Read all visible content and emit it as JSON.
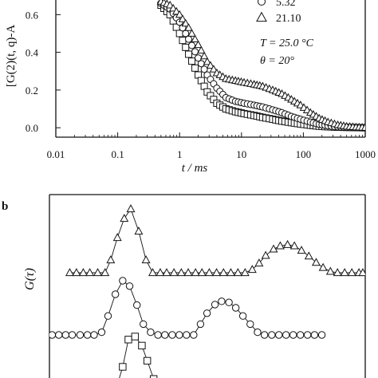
{
  "chart_data": [
    {
      "panel": "a",
      "type": "scatter",
      "xscale": "log",
      "xlim": [
        0.01,
        1000
      ],
      "ylim": [
        -0.05,
        0.72
      ],
      "xlabel": "t / ms",
      "ylabel": "[G(2)(t, q)-A",
      "xticks": [
        0.01,
        0.1,
        1,
        10,
        100,
        1000
      ],
      "xtick_labels": [
        "0.01",
        "0.1",
        "1",
        "10",
        "100",
        "1000"
      ],
      "yticks": [
        0.0,
        0.2,
        0.4,
        0.6
      ],
      "ytick_labels": [
        "0.0",
        "0.2",
        "0.4",
        "0.6"
      ],
      "annotations": [
        "T = 25.0 °C",
        "θ = 20°"
      ],
      "legend_position": "top-right",
      "series": [
        {
          "name": "",
          "marker": "square",
          "x": [
            0.5,
            0.7,
            1.0,
            1.4,
            2.0,
            2.8,
            4.0,
            5.6,
            8.0,
            11,
            16,
            22,
            32,
            45,
            64,
            90,
            130,
            180,
            250,
            360,
            500,
            710,
            1000
          ],
          "y": [
            0.65,
            0.6,
            0.5,
            0.39,
            0.28,
            0.19,
            0.13,
            0.1,
            0.085,
            0.075,
            0.065,
            0.055,
            0.045,
            0.035,
            0.027,
            0.02,
            0.013,
            0.008,
            0.005,
            0.003,
            0.002,
            0.001,
            0.0
          ]
        },
        {
          "name": "5.32",
          "marker": "circle",
          "x": [
            0.5,
            0.7,
            1.0,
            1.4,
            2.0,
            2.8,
            4.0,
            5.6,
            8.0,
            11,
            16,
            22,
            32,
            45,
            64,
            90,
            130,
            180,
            250,
            360,
            500,
            710,
            1000
          ],
          "y": [
            0.66,
            0.63,
            0.56,
            0.47,
            0.37,
            0.28,
            0.21,
            0.16,
            0.14,
            0.13,
            0.12,
            0.11,
            0.095,
            0.08,
            0.06,
            0.045,
            0.03,
            0.018,
            0.01,
            0.005,
            0.002,
            0.001,
            0.0
          ]
        },
        {
          "name": "21.10",
          "marker": "triangle",
          "x": [
            0.5,
            0.7,
            1.0,
            1.4,
            2.0,
            2.8,
            4.0,
            5.6,
            8.0,
            11,
            16,
            22,
            32,
            45,
            64,
            90,
            130,
            180,
            250,
            360,
            500,
            710,
            1000
          ],
          "y": [
            0.67,
            0.65,
            0.6,
            0.53,
            0.44,
            0.35,
            0.29,
            0.26,
            0.25,
            0.24,
            0.23,
            0.22,
            0.2,
            0.18,
            0.15,
            0.12,
            0.08,
            0.05,
            0.03,
            0.015,
            0.007,
            0.003,
            0.001
          ]
        }
      ]
    },
    {
      "panel": "b",
      "type": "line",
      "xscale": "log",
      "ylabel": "G(τ)",
      "series": [
        {
          "name": "",
          "marker": "triangle",
          "x": [
            0.01,
            0.013,
            0.017,
            0.022,
            0.03,
            0.04,
            0.05,
            0.065,
            0.085,
            0.11,
            0.15,
            0.2,
            0.26,
            0.35,
            0.45,
            0.6,
            0.8,
            1.05,
            1.4,
            1.8,
            2.4,
            3.2,
            4.2,
            5.6,
            7.4,
            9.8,
            13,
            17,
            22,
            30,
            39,
            52,
            68,
            90,
            120,
            160,
            210,
            280,
            370,
            490,
            650,
            860,
            1000
          ],
          "y": [
            0.0,
            0.0,
            0.0,
            0.0,
            0.0,
            0.0,
            0.2,
            0.55,
            0.85,
            1.0,
            0.65,
            0.2,
            0.0,
            0.0,
            0.0,
            0.0,
            0.0,
            0.0,
            0.0,
            0.0,
            0.0,
            0.0,
            0.0,
            0.0,
            0.0,
            0.0,
            0.05,
            0.15,
            0.27,
            0.37,
            0.42,
            0.44,
            0.42,
            0.35,
            0.26,
            0.16,
            0.08,
            0.02,
            0.0,
            0.0,
            0.0,
            0.0,
            0.0
          ]
        },
        {
          "name": "5.32",
          "marker": "circle",
          "x": [
            0.005,
            0.0065,
            0.0085,
            0.011,
            0.015,
            0.02,
            0.026,
            0.035,
            0.045,
            0.06,
            0.08,
            0.105,
            0.14,
            0.18,
            0.24,
            0.32,
            0.42,
            0.56,
            0.74,
            0.98,
            1.3,
            1.7,
            2.2,
            3.0,
            3.9,
            5.2,
            6.8,
            9.0,
            12,
            16,
            21,
            28,
            37,
            49,
            65,
            86,
            114,
            150,
            200
          ],
          "y": [
            0.0,
            0.0,
            0.0,
            0.0,
            0.0,
            0.0,
            0.0,
            0.05,
            0.35,
            0.75,
            1.0,
            0.9,
            0.55,
            0.2,
            0.05,
            0.0,
            0.0,
            0.0,
            0.0,
            0.0,
            0.0,
            0.2,
            0.4,
            0.56,
            0.62,
            0.6,
            0.5,
            0.35,
            0.2,
            0.05,
            0.0,
            0.0,
            0.0,
            0.0,
            0.0,
            0.0,
            0.0,
            0.0,
            0.0
          ]
        },
        {
          "name": "",
          "marker": "square",
          "x": [
            0.06,
            0.08,
            0.1,
            0.13,
            0.17,
            0.21,
            0.27
          ],
          "y": [
            0.1,
            0.5,
            0.95,
            1.0,
            0.85,
            0.6,
            0.3
          ]
        }
      ]
    }
  ],
  "panel_b_label": "b",
  "legend": {
    "circle_label": "5.32",
    "triangle_label": "21.10"
  },
  "annotations": {
    "temperature": "T = 25.0 °C",
    "angle": "θ = 20°"
  }
}
